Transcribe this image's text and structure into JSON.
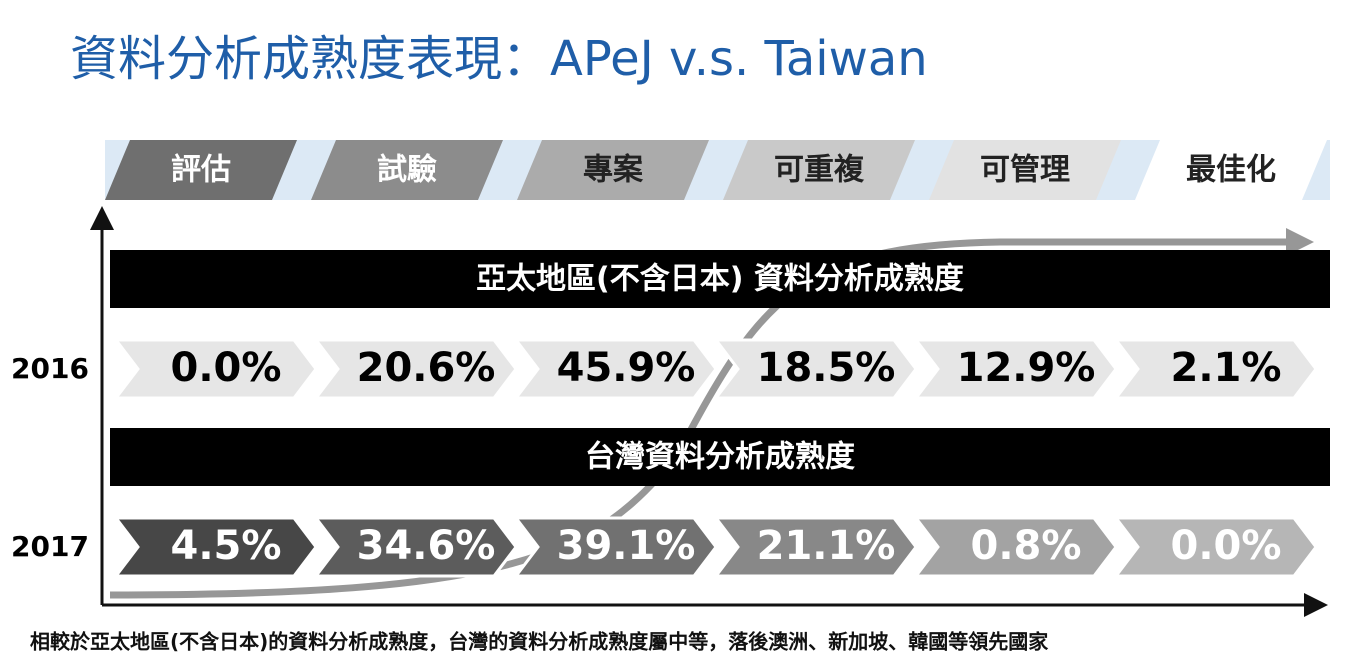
{
  "header": {
    "title": "資料分析成熟度表現：APeJ v.s. Taiwan"
  },
  "stages": [
    "評估",
    "試驗",
    "專案",
    "可重複",
    "可管理",
    "最佳化"
  ],
  "rows": [
    {
      "banner": "亞太地區(不含日本) 資料分析成熟度",
      "year": "2016",
      "values": [
        "0.0%",
        "20.6%",
        "45.9%",
        "18.5%",
        "12.9%",
        "2.1%"
      ]
    },
    {
      "banner": "台灣資料分析成熟度",
      "year": "2017",
      "values": [
        "4.5%",
        "34.6%",
        "39.1%",
        "21.1%",
        "0.8%",
        "0.0%"
      ]
    }
  ],
  "footer": "相較於亞太地區(不含日本)的資料分析成熟度，台灣的資料分析成熟度屬中等，落後澳洲、新加坡、韓國等領先國家"
}
